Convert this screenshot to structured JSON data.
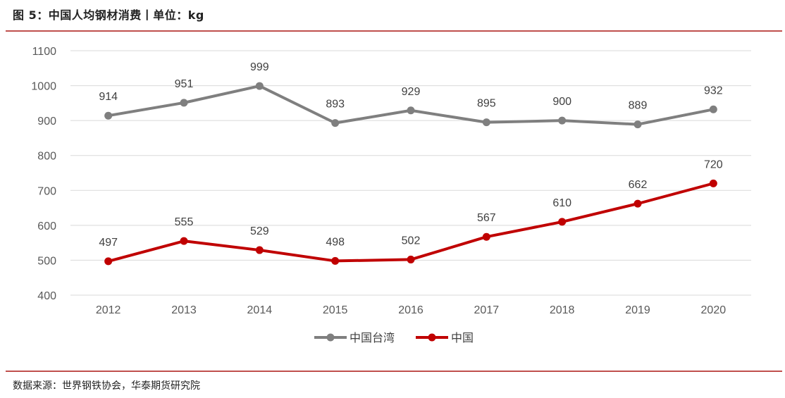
{
  "header": {
    "title": "图 5：中国人均钢材消费丨单位：kg"
  },
  "footer": {
    "source": "数据来源：世界钢铁协会，华泰期货研究院"
  },
  "colors": {
    "rule": "#c0504d",
    "series_taiwan": "#7f7f7f",
    "series_china": "#c00000",
    "grid": "#d9d9d9"
  },
  "chart_data": {
    "type": "line",
    "categories": [
      "2012",
      "2013",
      "2014",
      "2015",
      "2016",
      "2017",
      "2018",
      "2019",
      "2020"
    ],
    "series": [
      {
        "name": "中国台湾",
        "values": [
          914,
          951,
          999,
          893,
          929,
          895,
          900,
          889,
          932
        ]
      },
      {
        "name": "中国",
        "values": [
          497,
          555,
          529,
          498,
          502,
          567,
          610,
          662,
          720
        ]
      }
    ],
    "ylim": [
      400,
      1100
    ],
    "yticks": [
      400,
      500,
      600,
      700,
      800,
      900,
      1000,
      1100
    ],
    "grid": true,
    "legend": "bottom-center",
    "data_labels": true
  }
}
